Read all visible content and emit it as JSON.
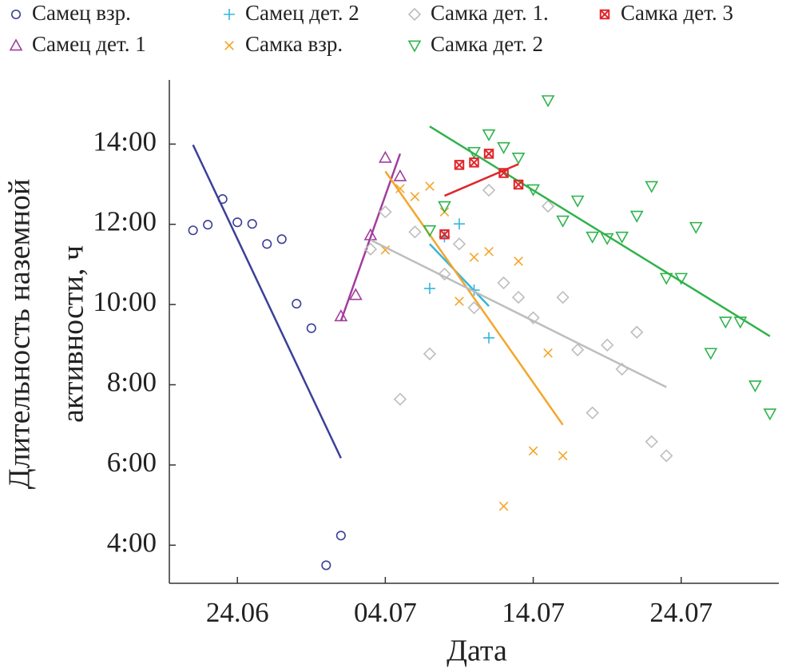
{
  "chart_data": {
    "type": "scatter",
    "xlabel": "Дата",
    "ylabel": [
      "Длительность наземной",
      "активности, ч"
    ],
    "xlim": [
      170.4,
      211.6
    ],
    "ylim": [
      3.05,
      15.6
    ],
    "xticks": [
      {
        "value": 175,
        "label": "24.06"
      },
      {
        "value": 185,
        "label": "04.07"
      },
      {
        "value": 195,
        "label": "14.07"
      },
      {
        "value": 205,
        "label": "24.07"
      }
    ],
    "yticks": [
      {
        "value": 4,
        "label": "4:00"
      },
      {
        "value": 6,
        "label": "6:00"
      },
      {
        "value": 8,
        "label": "8:00"
      },
      {
        "value": 10,
        "label": "10:00"
      },
      {
        "value": 12,
        "label": "12:00"
      },
      {
        "value": 14,
        "label": "14:00"
      }
    ],
    "series": [
      {
        "name": "Самец взр.",
        "color": "#3b3f98",
        "marker": "circle",
        "x": [
          172,
          173,
          174,
          175,
          176,
          177,
          178,
          179,
          180,
          181,
          182
        ],
        "values": [
          11.85,
          11.99,
          12.63,
          12.05,
          12.01,
          11.51,
          11.63,
          10.02,
          9.41,
          3.5,
          4.24
        ],
        "fit": {
          "x": [
            172,
            182
          ],
          "values": [
            13.98,
            6.17
          ]
        }
      },
      {
        "name": "Самец дет. 1",
        "color": "#a23d9e",
        "marker": "triangle-up",
        "x": [
          182,
          183,
          184,
          185,
          186
        ],
        "values": [
          9.71,
          10.24,
          11.73,
          13.66,
          13.2
        ],
        "fit": {
          "x": [
            182,
            186
          ],
          "values": [
            9.59,
            13.76
          ]
        }
      },
      {
        "name": "Самец дет. 2",
        "color": "#35b6dc",
        "marker": "plus",
        "x": [
          188,
          189,
          190,
          191,
          192
        ],
        "values": [
          10.4,
          11.69,
          12.01,
          10.36,
          9.17
        ],
        "fit": {
          "x": [
            188,
            192
          ],
          "values": [
            11.51,
            9.96
          ]
        }
      },
      {
        "name": "Самка взр.",
        "color": "#f4a62a",
        "marker": "x",
        "x": [
          185,
          186,
          187,
          188,
          189,
          190,
          191,
          192,
          193,
          194,
          195,
          196,
          197
        ],
        "values": [
          11.36,
          12.89,
          12.69,
          12.95,
          12.31,
          10.08,
          11.18,
          11.32,
          4.97,
          11.08,
          6.35,
          8.79,
          6.23
        ],
        "fit": {
          "x": [
            185,
            197
          ],
          "values": [
            13.32,
            7.0
          ]
        }
      },
      {
        "name": "Самка дет. 1.",
        "color": "#bdbdbd",
        "marker": "diamond",
        "x": [
          184,
          185,
          186,
          187,
          188,
          189,
          190,
          191,
          192,
          193,
          194,
          195,
          196,
          197,
          198,
          199,
          200,
          201,
          202,
          203,
          204
        ],
        "values": [
          11.38,
          12.31,
          7.64,
          11.81,
          8.77,
          10.76,
          11.51,
          9.92,
          12.85,
          10.54,
          10.18,
          9.67,
          12.45,
          10.18,
          8.87,
          7.3,
          8.99,
          8.39,
          9.31,
          6.58,
          6.23
        ],
        "fit": {
          "x": [
            184,
            204
          ],
          "values": [
            11.61,
            7.94
          ]
        }
      },
      {
        "name": "Самка дет. 2",
        "color": "#2fb34c",
        "marker": "triangle-down",
        "x": [
          188,
          189,
          191,
          192,
          193,
          194,
          195,
          196,
          197,
          198,
          199,
          200,
          201,
          202,
          203,
          204,
          205,
          206,
          207,
          208,
          209,
          210,
          211
        ],
        "values": [
          11.85,
          12.45,
          13.8,
          14.24,
          13.92,
          13.66,
          12.87,
          15.09,
          12.09,
          12.59,
          11.69,
          11.65,
          11.69,
          12.21,
          12.95,
          10.66,
          10.66,
          11.93,
          8.79,
          9.57,
          9.57,
          7.98,
          7.28
        ],
        "fit": {
          "x": [
            188,
            211
          ],
          "values": [
            14.44,
            9.21
          ]
        }
      },
      {
        "name": "Самка дет. 3",
        "color": "#e0262b",
        "marker": "boxed-x",
        "x": [
          189,
          190,
          191,
          192,
          193,
          194
        ],
        "values": [
          11.75,
          13.48,
          13.54,
          13.76,
          13.28,
          12.99
        ],
        "fit": {
          "x": [
            189,
            194
          ],
          "values": [
            12.71,
            13.5
          ]
        }
      }
    ]
  }
}
